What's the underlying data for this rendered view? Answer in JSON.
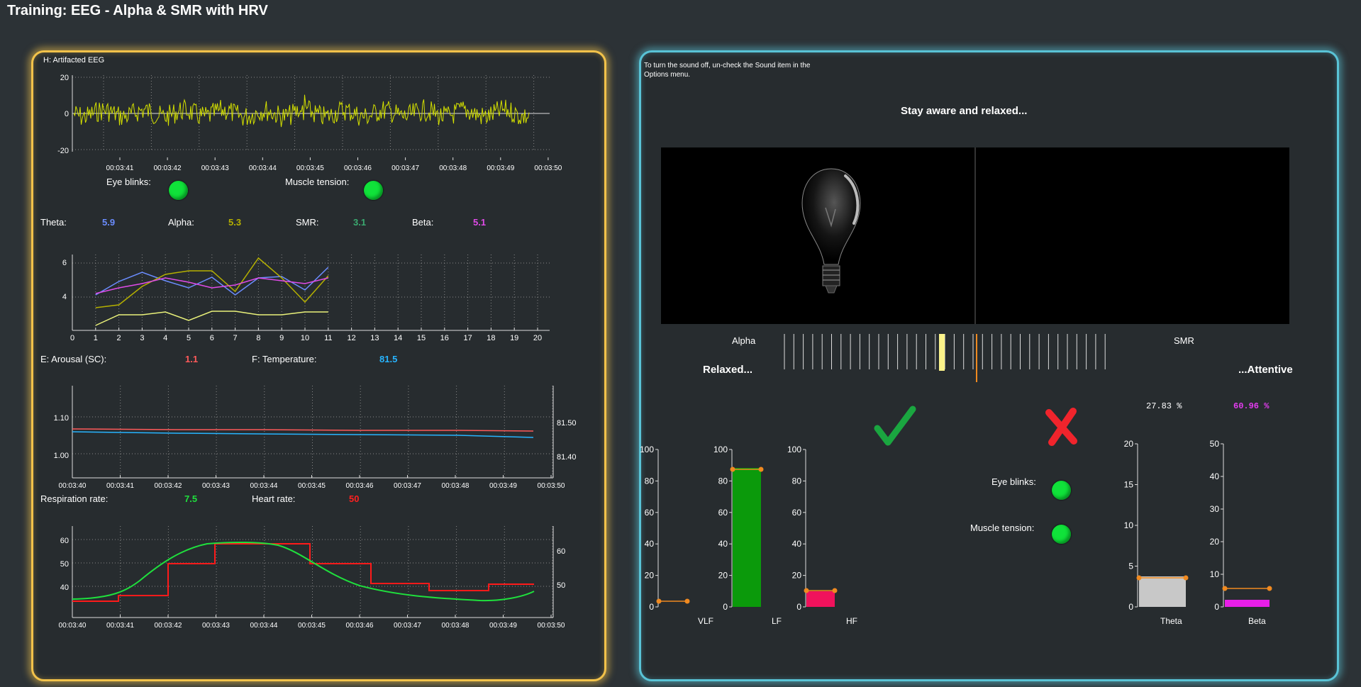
{
  "window": {
    "title": "Training: EEG - Alpha & SMR with HRV"
  },
  "left": {
    "eeg": {
      "title": "H: Artifacted EEG",
      "y_ticks": [
        "20",
        "0",
        "-20"
      ],
      "x_ticks": [
        "00:03:41",
        "00:03:42",
        "00:03:43",
        "00:03:44",
        "00:03:45",
        "00:03:46",
        "00:03:47",
        "00:03:48",
        "00:03:49",
        "00:03:50"
      ]
    },
    "artifacts": {
      "eye_blinks_label": "Eye blinks:",
      "muscle_label": "Muscle tension:"
    },
    "bands": {
      "theta_label": "Theta:",
      "theta_value": "5.9",
      "alpha_label": "Alpha:",
      "alpha_value": "5.3",
      "smr_label": "SMR:",
      "smr_value": "3.1",
      "beta_label": "Beta:",
      "beta_value": "5.1"
    },
    "trend": {
      "y_ticks": [
        "6",
        "4"
      ],
      "x_ticks": [
        "0",
        "1",
        "2",
        "3",
        "4",
        "5",
        "6",
        "7",
        "8",
        "9",
        "10",
        "11",
        "12",
        "13",
        "14",
        "15",
        "16",
        "17",
        "18",
        "19",
        "20"
      ]
    },
    "arousal": {
      "label": "E: Arousal (SC):",
      "value": "1.1",
      "temp_label": "F: Temperature:",
      "temp_value": "81.5"
    },
    "sc_chart": {
      "y_left": [
        "1.10",
        "1.00"
      ],
      "y_right": [
        "81.50",
        "81.40"
      ],
      "x_ticks": [
        "00:03:40",
        "00:03:41",
        "00:03:42",
        "00:03:43",
        "00:03:44",
        "00:03:45",
        "00:03:46",
        "00:03:47",
        "00:03:48",
        "00:03:49",
        "00:03:50"
      ]
    },
    "resp": {
      "label": "Respiration rate:",
      "value": "7.5",
      "hr_label": "Heart rate:",
      "hr_value": "50"
    },
    "hr_chart": {
      "y_left": [
        "60",
        "50",
        "40"
      ],
      "y_right": [
        "60",
        "50"
      ],
      "x_ticks": [
        "00:03:40",
        "00:03:41",
        "00:03:42",
        "00:03:43",
        "00:03:44",
        "00:03:45",
        "00:03:46",
        "00:03:47",
        "00:03:48",
        "00:03:49",
        "00:03:50"
      ]
    }
  },
  "right": {
    "sound_note": "To turn the sound off, un-check the Sound item in the Options menu.",
    "instruction": "Stay aware and relaxed...",
    "slider": {
      "alpha_label": "Alpha",
      "smr_label": "SMR",
      "relaxed_label": "Relaxed...",
      "attentive_label": "...Attentive"
    },
    "percent": {
      "left": "27.83 %",
      "right": "60.96 %"
    },
    "artifacts": {
      "eye_blinks_label": "Eye blinks:",
      "muscle_label": "Muscle tension:"
    },
    "hrv_bars": {
      "y_ticks": [
        "100",
        "80",
        "60",
        "40",
        "20",
        "0"
      ],
      "vlf_label": "VLF",
      "lf_label": "LF",
      "hf_label": "HF"
    },
    "theta_bar": {
      "y_ticks": [
        "20",
        "15",
        "10",
        "5",
        "0"
      ],
      "label": "Theta"
    },
    "beta_bar": {
      "y_ticks": [
        "50",
        "40",
        "30",
        "20",
        "10",
        "0"
      ],
      "label": "Beta"
    }
  },
  "colors": {
    "left_border": "#f2c24a",
    "right_border": "#59c3d6",
    "good": "#10e23a"
  },
  "icons": {
    "check": "check-icon",
    "cross": "cross-icon",
    "bulb": "lightbulb-icon"
  }
}
